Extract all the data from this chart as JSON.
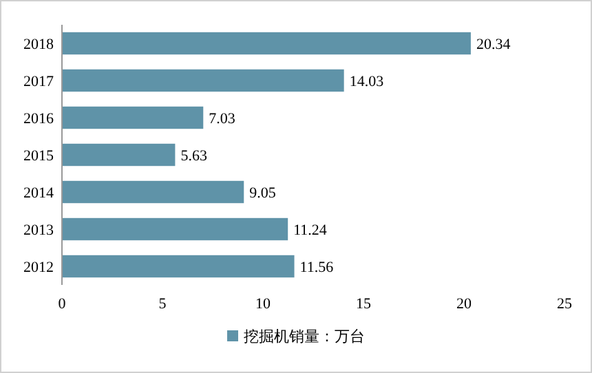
{
  "chart_data": {
    "type": "bar",
    "orientation": "horizontal",
    "categories": [
      "2018",
      "2017",
      "2016",
      "2015",
      "2014",
      "2013",
      "2012"
    ],
    "series": [
      {
        "name": "挖掘机销量：万台",
        "color": "#5f93a8",
        "values": [
          20.34,
          14.03,
          7.03,
          5.63,
          9.05,
          11.24,
          11.56
        ]
      }
    ],
    "xlim": [
      0,
      25
    ],
    "xticks": [
      0,
      5,
      10,
      15,
      20,
      25
    ],
    "data_labels": true,
    "legend": "bottom"
  }
}
